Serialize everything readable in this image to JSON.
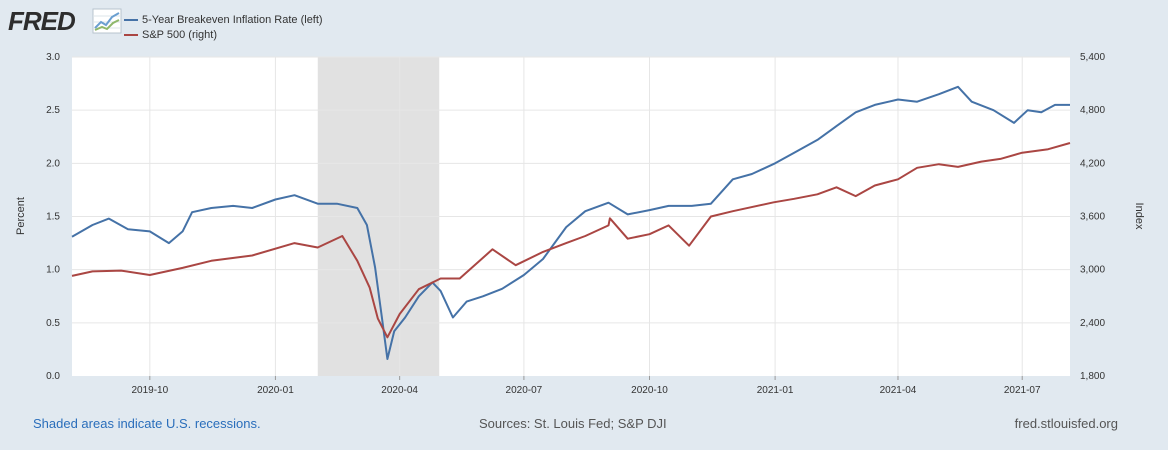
{
  "header": {
    "logo_text": "FRED",
    "logo_icon": "chart-line-icon"
  },
  "legend": {
    "items": [
      {
        "label": "5-Year Breakeven Inflation Rate (left)",
        "color": "#4572a7"
      },
      {
        "label": "S&P 500 (right)",
        "color": "#aa4643"
      }
    ]
  },
  "footer": {
    "recession_note": "Shaded areas indicate U.S. recessions.",
    "sources": "Sources: St. Louis Fed; S&P DJI",
    "site": "fred.stlouisfed.org"
  },
  "chart_data": {
    "type": "line",
    "title": "",
    "xlabel": "",
    "ylabel_left": "Percent",
    "ylabel_right": "Index",
    "x_ticks": [
      "2019-10",
      "2020-01",
      "2020-04",
      "2020-07",
      "2020-10",
      "2021-01",
      "2021-04",
      "2021-07"
    ],
    "x_range": [
      "2019-08-05",
      "2021-08-05"
    ],
    "ylim_left": [
      0.0,
      3.0
    ],
    "y_ticks_left": [
      "0.0",
      "0.5",
      "1.0",
      "1.5",
      "2.0",
      "2.5",
      "3.0"
    ],
    "ylim_right": [
      1800,
      5400
    ],
    "y_ticks_right": [
      "1,800",
      "2,400",
      "3,000",
      "3,600",
      "4,200",
      "4,800",
      "5,400"
    ],
    "grid": true,
    "recession_shading": {
      "start": "2020-02-01",
      "end": "2020-04-30"
    },
    "series": [
      {
        "name": "5-Year Breakeven Inflation Rate (left)",
        "axis": "left",
        "color": "#4572a7",
        "points": [
          [
            "2019-08-05",
            1.31
          ],
          [
            "2019-08-20",
            1.42
          ],
          [
            "2019-09-01",
            1.48
          ],
          [
            "2019-09-15",
            1.38
          ],
          [
            "2019-10-01",
            1.36
          ],
          [
            "2019-10-15",
            1.25
          ],
          [
            "2019-10-25",
            1.36
          ],
          [
            "2019-11-01",
            1.54
          ],
          [
            "2019-11-15",
            1.58
          ],
          [
            "2019-12-01",
            1.6
          ],
          [
            "2019-12-15",
            1.58
          ],
          [
            "2020-01-01",
            1.66
          ],
          [
            "2020-01-15",
            1.7
          ],
          [
            "2020-02-01",
            1.62
          ],
          [
            "2020-02-15",
            1.62
          ],
          [
            "2020-03-01",
            1.58
          ],
          [
            "2020-03-08",
            1.42
          ],
          [
            "2020-03-14",
            1.02
          ],
          [
            "2020-03-19",
            0.55
          ],
          [
            "2020-03-23",
            0.16
          ],
          [
            "2020-03-28",
            0.42
          ],
          [
            "2020-04-05",
            0.55
          ],
          [
            "2020-04-15",
            0.75
          ],
          [
            "2020-04-25",
            0.88
          ],
          [
            "2020-05-01",
            0.8
          ],
          [
            "2020-05-10",
            0.55
          ],
          [
            "2020-05-20",
            0.7
          ],
          [
            "2020-06-01",
            0.75
          ],
          [
            "2020-06-15",
            0.82
          ],
          [
            "2020-07-01",
            0.95
          ],
          [
            "2020-07-15",
            1.1
          ],
          [
            "2020-08-01",
            1.4
          ],
          [
            "2020-08-15",
            1.55
          ],
          [
            "2020-09-01",
            1.63
          ],
          [
            "2020-09-15",
            1.52
          ],
          [
            "2020-10-01",
            1.56
          ],
          [
            "2020-10-15",
            1.6
          ],
          [
            "2020-11-01",
            1.6
          ],
          [
            "2020-11-15",
            1.62
          ],
          [
            "2020-12-01",
            1.85
          ],
          [
            "2020-12-15",
            1.9
          ],
          [
            "2021-01-01",
            2.0
          ],
          [
            "2021-01-15",
            2.1
          ],
          [
            "2021-02-01",
            2.22
          ],
          [
            "2021-02-15",
            2.35
          ],
          [
            "2021-03-01",
            2.48
          ],
          [
            "2021-03-15",
            2.55
          ],
          [
            "2021-04-01",
            2.6
          ],
          [
            "2021-04-15",
            2.58
          ],
          [
            "2021-05-01",
            2.65
          ],
          [
            "2021-05-15",
            2.72
          ],
          [
            "2021-05-25",
            2.58
          ],
          [
            "2021-06-10",
            2.5
          ],
          [
            "2021-06-25",
            2.38
          ],
          [
            "2021-07-05",
            2.5
          ],
          [
            "2021-07-15",
            2.48
          ],
          [
            "2021-07-25",
            2.55
          ],
          [
            "2021-08-05",
            2.55
          ]
        ]
      },
      {
        "name": "S&P 500 (right)",
        "axis": "right",
        "color": "#aa4643",
        "points": [
          [
            "2019-08-05",
            2930
          ],
          [
            "2019-08-20",
            2980
          ],
          [
            "2019-09-10",
            2990
          ],
          [
            "2019-10-01",
            2940
          ],
          [
            "2019-10-25",
            3020
          ],
          [
            "2019-11-15",
            3100
          ],
          [
            "2019-12-15",
            3160
          ],
          [
            "2020-01-15",
            3300
          ],
          [
            "2020-02-01",
            3250
          ],
          [
            "2020-02-19",
            3380
          ],
          [
            "2020-03-01",
            3100
          ],
          [
            "2020-03-10",
            2800
          ],
          [
            "2020-03-16",
            2450
          ],
          [
            "2020-03-23",
            2237
          ],
          [
            "2020-04-01",
            2500
          ],
          [
            "2020-04-15",
            2780
          ],
          [
            "2020-05-01",
            2900
          ],
          [
            "2020-05-15",
            2900
          ],
          [
            "2020-06-08",
            3230
          ],
          [
            "2020-06-25",
            3050
          ],
          [
            "2020-07-15",
            3200
          ],
          [
            "2020-08-01",
            3300
          ],
          [
            "2020-08-15",
            3380
          ],
          [
            "2020-09-01",
            3500
          ],
          [
            "2020-09-02",
            3580
          ],
          [
            "2020-09-15",
            3350
          ],
          [
            "2020-10-01",
            3400
          ],
          [
            "2020-10-15",
            3500
          ],
          [
            "2020-10-30",
            3270
          ],
          [
            "2020-11-15",
            3600
          ],
          [
            "2020-12-01",
            3660
          ],
          [
            "2020-12-31",
            3760
          ],
          [
            "2021-01-15",
            3800
          ],
          [
            "2021-02-01",
            3850
          ],
          [
            "2021-02-15",
            3930
          ],
          [
            "2021-03-01",
            3830
          ],
          [
            "2021-03-15",
            3950
          ],
          [
            "2021-04-01",
            4020
          ],
          [
            "2021-04-15",
            4150
          ],
          [
            "2021-05-01",
            4190
          ],
          [
            "2021-05-15",
            4160
          ],
          [
            "2021-06-01",
            4220
          ],
          [
            "2021-06-15",
            4250
          ],
          [
            "2021-07-01",
            4320
          ],
          [
            "2021-07-20",
            4360
          ],
          [
            "2021-08-05",
            4430
          ]
        ]
      }
    ]
  }
}
